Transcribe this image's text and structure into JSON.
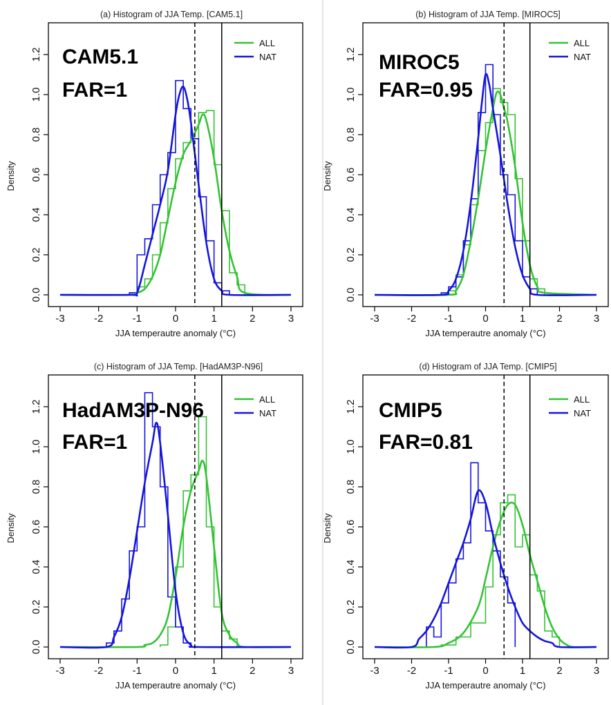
{
  "chart_data": [
    {
      "type": "line",
      "title": "(a) Histogram of JJA Temp. [CAM5.1]",
      "xlabel": "JJA temperautre anomaly (°C)",
      "ylabel": "Density",
      "xlim": [
        -3,
        3
      ],
      "ylim": [
        0,
        1.3
      ],
      "xticks": [
        "-3",
        "-2",
        "-1",
        "0",
        "1",
        "2",
        "3"
      ],
      "yticks": [
        "0.0",
        "0.2",
        "0.4",
        "0.6",
        "0.8",
        "1.0",
        "1.2"
      ],
      "legend": "top-right",
      "annotation_model": "CAM5.1",
      "annotation_far": "FAR=1",
      "vlines": [
        {
          "x": 0.5,
          "style": "dashed"
        },
        {
          "x": 1.2,
          "style": "solid"
        }
      ],
      "series": [
        {
          "name": "ALL",
          "color": "#33c233",
          "x": [
            -3,
            -1.2,
            -1.0,
            -0.8,
            -0.6,
            -0.4,
            -0.2,
            0.0,
            0.2,
            0.4,
            0.6,
            0.7,
            0.8,
            1.0,
            1.2,
            1.4,
            1.6,
            1.8,
            3
          ],
          "values": [
            0,
            0,
            0.01,
            0.03,
            0.09,
            0.2,
            0.38,
            0.56,
            0.7,
            0.77,
            0.85,
            0.9,
            0.87,
            0.68,
            0.42,
            0.22,
            0.09,
            0.01,
            0
          ]
        },
        {
          "name": "NAT",
          "color": "#1414dc",
          "x": [
            -3,
            -1.2,
            -1.0,
            -0.8,
            -0.6,
            -0.4,
            -0.2,
            0.0,
            0.1,
            0.2,
            0.3,
            0.4,
            0.6,
            0.8,
            1.0,
            1.2,
            1.4,
            3
          ],
          "values": [
            0,
            0,
            0.01,
            0.15,
            0.3,
            0.45,
            0.62,
            0.9,
            1.0,
            1.04,
            0.98,
            0.86,
            0.55,
            0.26,
            0.08,
            0.02,
            0,
            0
          ]
        }
      ],
      "histograms": [
        {
          "series": "ALL",
          "color": "#33c233",
          "bins": [
            -1.2,
            -1.0,
            -0.8,
            -0.6,
            -0.4,
            -0.2,
            0.0,
            0.2,
            0.4,
            0.6,
            0.8,
            1.0,
            1.2,
            1.4,
            1.6,
            1.8
          ],
          "values": [
            0.01,
            0.04,
            0.08,
            0.2,
            0.36,
            0.53,
            0.68,
            0.76,
            0.78,
            0.91,
            0.92,
            0.65,
            0.42,
            0.11,
            0.05
          ]
        },
        {
          "series": "NAT",
          "color": "#1414dc",
          "bins": [
            -1.2,
            -1.0,
            -0.8,
            -0.6,
            -0.4,
            -0.2,
            0.0,
            0.2,
            0.4,
            0.6,
            0.8,
            1.0,
            1.2,
            1.4
          ],
          "values": [
            0.01,
            0.2,
            0.28,
            0.45,
            0.6,
            0.71,
            1.07,
            0.93,
            0.78,
            0.49,
            0.27,
            0.06,
            0.02
          ]
        }
      ]
    },
    {
      "type": "line",
      "title": "(b) Histogram of JJA Temp. [MIROC5]",
      "xlabel": "JJA temperautre anomaly (°C)",
      "ylabel": "Density",
      "xlim": [
        -3,
        3
      ],
      "ylim": [
        0,
        1.3
      ],
      "xticks": [
        "-3",
        "-2",
        "-1",
        "0",
        "1",
        "2",
        "3"
      ],
      "yticks": [
        "0.0",
        "0.2",
        "0.4",
        "0.6",
        "0.8",
        "1.0",
        "1.2"
      ],
      "legend": "top-right",
      "annotation_model": "MIROC5",
      "annotation_far": "FAR=0.95",
      "vlines": [
        {
          "x": 0.5,
          "style": "dashed"
        },
        {
          "x": 1.2,
          "style": "solid"
        }
      ],
      "series": [
        {
          "name": "ALL",
          "color": "#33c233",
          "x": [
            -3,
            -1.0,
            -0.8,
            -0.6,
            -0.4,
            -0.2,
            0.0,
            0.2,
            0.3,
            0.4,
            0.5,
            0.6,
            0.8,
            1.0,
            1.2,
            1.4,
            1.6,
            3
          ],
          "values": [
            0,
            0,
            0.02,
            0.1,
            0.27,
            0.48,
            0.72,
            0.93,
            1.01,
            1.0,
            0.93,
            0.86,
            0.64,
            0.36,
            0.15,
            0.04,
            0.01,
            0
          ]
        },
        {
          "name": "NAT",
          "color": "#1414dc",
          "x": [
            -3,
            -1.2,
            -1.0,
            -0.8,
            -0.6,
            -0.4,
            -0.2,
            -0.1,
            0.0,
            0.1,
            0.2,
            0.4,
            0.6,
            0.8,
            1.0,
            1.2,
            1.4,
            3
          ],
          "values": [
            0,
            0,
            0.02,
            0.08,
            0.22,
            0.46,
            0.78,
            0.96,
            1.1,
            1.05,
            0.93,
            0.7,
            0.45,
            0.24,
            0.1,
            0.03,
            0,
            0
          ]
        }
      ],
      "histograms": [
        {
          "series": "ALL",
          "color": "#33c233",
          "bins": [
            -1.0,
            -0.8,
            -0.6,
            -0.4,
            -0.2,
            0.0,
            0.2,
            0.4,
            0.6,
            0.8,
            1.0,
            1.2,
            1.4,
            1.6
          ],
          "values": [
            0.02,
            0.1,
            0.25,
            0.45,
            0.72,
            0.86,
            1.03,
            0.96,
            0.9,
            0.58,
            0.27,
            0.08,
            0.03
          ]
        },
        {
          "series": "NAT",
          "color": "#1414dc",
          "bins": [
            -1.2,
            -1.0,
            -0.8,
            -0.6,
            -0.4,
            -0.2,
            0.0,
            0.2,
            0.4,
            0.6,
            0.8,
            1.0,
            1.2,
            1.4
          ],
          "values": [
            0.01,
            0.04,
            0.09,
            0.27,
            0.48,
            0.91,
            1.15,
            0.9,
            0.6,
            0.5,
            0.27,
            0.09,
            0.03
          ]
        }
      ]
    },
    {
      "type": "line",
      "title": "(c) Histogram of JJA Temp. [HadAM3P-N96]",
      "xlabel": "JJA temperautre anomaly (°C)",
      "ylabel": "Density",
      "xlim": [
        -3,
        3
      ],
      "ylim": [
        0,
        1.3
      ],
      "xticks": [
        "-3",
        "-2",
        "-1",
        "0",
        "1",
        "2",
        "3"
      ],
      "yticks": [
        "0.0",
        "0.2",
        "0.4",
        "0.6",
        "0.8",
        "1.0",
        "1.2"
      ],
      "legend": "top-right",
      "annotation_model": "HadAM3P-N96",
      "annotation_far": "FAR=1",
      "vlines": [
        {
          "x": 0.5,
          "style": "dashed"
        },
        {
          "x": 1.2,
          "style": "solid"
        }
      ],
      "series": [
        {
          "name": "ALL",
          "color": "#33c233",
          "x": [
            -3,
            -1.0,
            -0.8,
            -0.6,
            -0.4,
            -0.2,
            0.0,
            0.2,
            0.4,
            0.6,
            0.7,
            0.8,
            1.0,
            1.2,
            1.4,
            1.6,
            1.8,
            3
          ],
          "values": [
            0,
            0,
            0.01,
            0.02,
            0.06,
            0.15,
            0.35,
            0.6,
            0.78,
            0.88,
            0.93,
            0.85,
            0.5,
            0.17,
            0.06,
            0.02,
            0,
            0
          ]
        },
        {
          "name": "NAT",
          "color": "#1414dc",
          "x": [
            -3,
            -1.8,
            -1.6,
            -1.4,
            -1.2,
            -1.0,
            -0.8,
            -0.6,
            -0.5,
            -0.4,
            -0.2,
            0.0,
            0.2,
            0.4,
            0.6,
            3
          ],
          "values": [
            0,
            0,
            0.05,
            0.15,
            0.34,
            0.58,
            0.82,
            1.02,
            1.12,
            1.02,
            0.66,
            0.28,
            0.07,
            0.01,
            0,
            0
          ]
        }
      ],
      "histograms": [
        {
          "series": "ALL",
          "color": "#33c233",
          "bins": [
            -0.4,
            -0.2,
            0.0,
            0.2,
            0.4,
            0.6,
            0.8,
            1.0,
            1.2,
            1.4,
            1.6
          ],
          "values": [
            0.01,
            0.1,
            0.4,
            0.78,
            0.86,
            1.15,
            0.6,
            0.2,
            0.08,
            0.04
          ]
        },
        {
          "series": "NAT",
          "color": "#1414dc",
          "bins": [
            -1.8,
            -1.6,
            -1.4,
            -1.2,
            -1.0,
            -0.8,
            -0.6,
            -0.4,
            -0.2,
            0.0,
            0.2,
            0.4
          ],
          "values": [
            0.02,
            0.08,
            0.24,
            0.48,
            0.6,
            1.27,
            1.1,
            0.8,
            0.25,
            0.1,
            0.02
          ]
        }
      ]
    },
    {
      "type": "line",
      "title": "(d) Histogram of JJA Temp. [CMIP5]",
      "xlabel": "JJA temperautre anomaly (°C)",
      "ylabel": "Density",
      "xlim": [
        -3,
        3
      ],
      "ylim": [
        0,
        1.3
      ],
      "xticks": [
        "-3",
        "-2",
        "-1",
        "0",
        "1",
        "2",
        "3"
      ],
      "yticks": [
        "0.0",
        "0.2",
        "0.4",
        "0.6",
        "0.8",
        "1.0",
        "1.2"
      ],
      "legend": "top-right",
      "annotation_model": "CMIP5",
      "annotation_far": "FAR=0.81",
      "vlines": [
        {
          "x": 0.5,
          "style": "dashed"
        },
        {
          "x": 1.2,
          "style": "solid"
        }
      ],
      "series": [
        {
          "name": "ALL",
          "color": "#33c233",
          "x": [
            -3,
            -1.4,
            -1.0,
            -0.6,
            -0.2,
            0.0,
            0.2,
            0.4,
            0.6,
            0.8,
            1.0,
            1.2,
            1.4,
            1.6,
            1.8,
            2.0,
            2.2,
            2.4,
            3
          ],
          "values": [
            0,
            0,
            0.02,
            0.07,
            0.2,
            0.34,
            0.5,
            0.63,
            0.71,
            0.71,
            0.61,
            0.46,
            0.33,
            0.2,
            0.1,
            0.04,
            0.01,
            0,
            0
          ]
        },
        {
          "name": "NAT",
          "color": "#1414dc",
          "x": [
            -3,
            -2.0,
            -1.8,
            -1.6,
            -1.4,
            -1.2,
            -1.0,
            -0.8,
            -0.6,
            -0.4,
            -0.2,
            0.0,
            0.2,
            0.4,
            0.6,
            0.8,
            1.0,
            1.2,
            1.4,
            1.6,
            1.8,
            2.0,
            3
          ],
          "values": [
            0,
            0,
            0.04,
            0.08,
            0.14,
            0.22,
            0.32,
            0.42,
            0.52,
            0.64,
            0.78,
            0.72,
            0.56,
            0.42,
            0.3,
            0.2,
            0.12,
            0.08,
            0.05,
            0.03,
            0.02,
            0,
            0
          ]
        }
      ],
      "histograms": [
        {
          "series": "ALL",
          "color": "#33c233",
          "bins": [
            -1.2,
            -0.8,
            -0.4,
            0.0,
            0.2,
            0.4,
            0.6,
            0.8,
            1.0,
            1.2,
            1.4,
            1.6,
            1.8,
            2.0
          ],
          "values": [
            0.01,
            0.05,
            0.12,
            0.3,
            0.56,
            0.72,
            0.76,
            0.5,
            0.56,
            0.36,
            0.28,
            0.08,
            0.05
          ]
        },
        {
          "series": "NAT",
          "color": "#1414dc",
          "bins": [
            -1.6,
            -1.4,
            -1.2,
            -1.0,
            -0.8,
            -0.6,
            -0.4,
            -0.2,
            0.0,
            0.2,
            0.4,
            0.6,
            0.8
          ],
          "values": [
            0.1,
            0.05,
            0.22,
            0.32,
            0.44,
            0.52,
            0.92,
            0.72,
            0.58,
            0.48,
            0.35,
            0.22
          ]
        }
      ]
    }
  ]
}
